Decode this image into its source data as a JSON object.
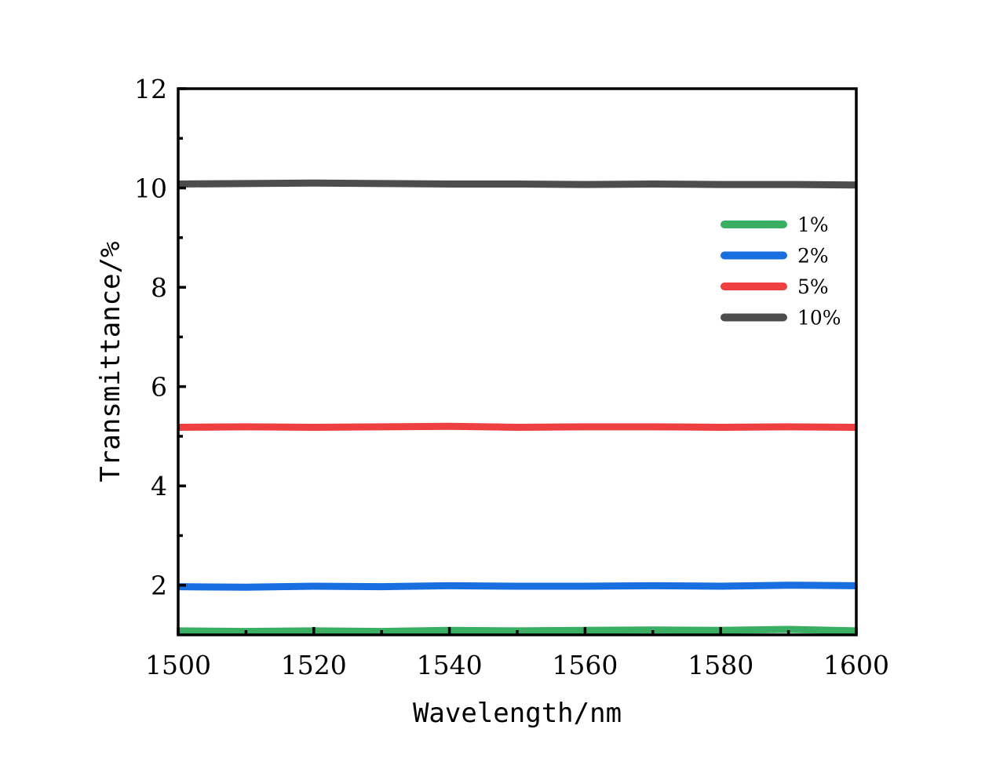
{
  "chart_data": {
    "type": "line",
    "title": "",
    "xlabel": "Wavelength/nm",
    "ylabel": "Transmittance/%",
    "xlim": [
      1500,
      1600
    ],
    "ylim": [
      1,
      12
    ],
    "x_ticks": [
      1500,
      1520,
      1540,
      1560,
      1580,
      1600
    ],
    "x_tick_labels": [
      "1500",
      "1520",
      "1540",
      "1560",
      "1580",
      "1600"
    ],
    "y_ticks": [
      2,
      4,
      6,
      8,
      10,
      12
    ],
    "y_tick_labels": [
      "2",
      "4",
      "6",
      "8",
      "10",
      "12"
    ],
    "grid": false,
    "legend_position": "right",
    "x": [
      1500,
      1510,
      1520,
      1530,
      1540,
      1550,
      1560,
      1570,
      1580,
      1590,
      1600
    ],
    "series": [
      {
        "name": "1%",
        "color": "#3aae62",
        "values": [
          1.08,
          1.07,
          1.08,
          1.07,
          1.09,
          1.08,
          1.09,
          1.1,
          1.09,
          1.11,
          1.08
        ]
      },
      {
        "name": "2%",
        "color": "#1a6fe0",
        "values": [
          1.97,
          1.96,
          1.98,
          1.97,
          1.99,
          1.98,
          1.98,
          1.99,
          1.98,
          2.0,
          1.99
        ]
      },
      {
        "name": "5%",
        "color": "#ee4040",
        "values": [
          5.18,
          5.19,
          5.18,
          5.19,
          5.2,
          5.18,
          5.19,
          5.19,
          5.18,
          5.19,
          5.18
        ]
      },
      {
        "name": "10%",
        "color": "#4d4d4d",
        "values": [
          10.08,
          10.09,
          10.1,
          10.09,
          10.08,
          10.08,
          10.07,
          10.08,
          10.07,
          10.07,
          10.06
        ]
      }
    ]
  }
}
